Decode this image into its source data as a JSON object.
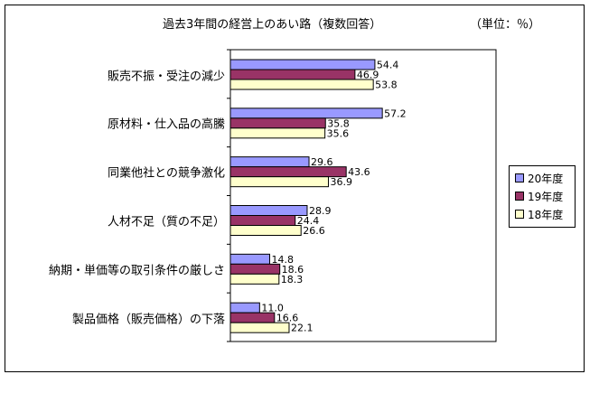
{
  "title": "過去3年間の経営上のあい路（複数回答）",
  "unit": "（単位：％）",
  "chart_data": {
    "type": "bar",
    "orientation": "horizontal",
    "categories": [
      "販売不振・受注の減少",
      "原材料・仕入品の高騰",
      "同業他社との競争激化",
      "人材不足（質の不足）",
      "納期・単価等の取引条件の厳しさ",
      "製品価格（販売価格）の下落"
    ],
    "series": [
      {
        "name": "20年度",
        "color": "#9999FF",
        "values": [
          54.4,
          57.2,
          29.6,
          28.9,
          14.8,
          11.0
        ]
      },
      {
        "name": "19年度",
        "color": "#993366",
        "values": [
          46.9,
          35.8,
          43.6,
          24.4,
          18.6,
          16.6
        ]
      },
      {
        "name": "18年度",
        "color": "#FFFFCC",
        "values": [
          53.8,
          35.6,
          36.9,
          26.6,
          18.3,
          22.1
        ]
      }
    ],
    "value_labels": [
      [
        "54.4",
        "57.2",
        "29.6",
        "28.9",
        "14.8",
        "11.0"
      ],
      [
        "46.9",
        "35.8",
        "43.6",
        "24.4",
        "18.6",
        "16.6"
      ],
      [
        "53.8",
        "35.6",
        "36.9",
        "26.6",
        "18.3",
        "22.1"
      ]
    ],
    "xlim": [
      0,
      100
    ],
    "grid": false,
    "legend": "right"
  }
}
